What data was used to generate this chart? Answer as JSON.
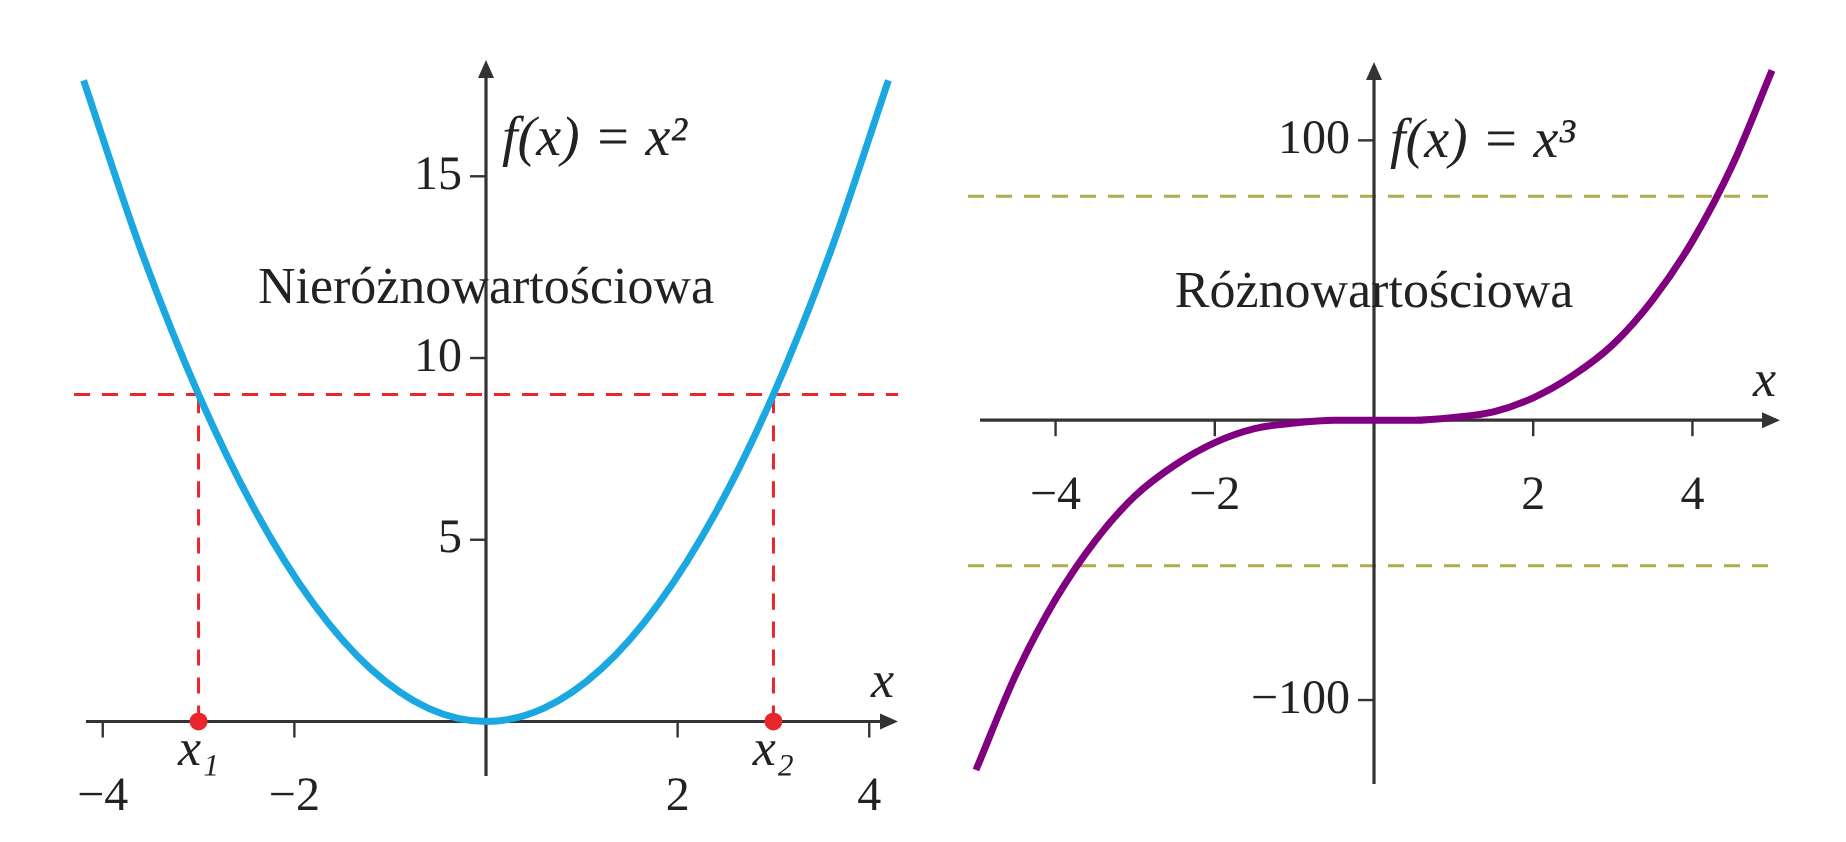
{
  "chart_data": [
    {
      "type": "line",
      "xlabel": "x",
      "xlim": [
        -4.3,
        4.3
      ],
      "ylim": [
        -1.5,
        18.2
      ],
      "xticks": [
        -4,
        -2,
        2,
        4
      ],
      "yticks": [
        5,
        10,
        15
      ],
      "series": [
        {
          "name": "f(x) = x²",
          "color": "#1ba8e0",
          "marker": "none",
          "x": [
            -4.2,
            -3.6,
            -3,
            -2.4,
            -1.8,
            -1.2,
            -0.6,
            0,
            0.6,
            1.2,
            1.8,
            2.4,
            3,
            3.6,
            4.2
          ],
          "values": [
            17.64,
            12.96,
            9,
            5.76,
            3.24,
            1.44,
            0.36,
            0,
            0.36,
            1.44,
            3.24,
            5.76,
            9,
            12.96,
            17.64
          ]
        },
        {
          "color": "#e8262b",
          "line_style": "dashed",
          "marker": "none",
          "x": [
            -3,
            -3
          ],
          "values": [
            0,
            9
          ]
        },
        {
          "color": "#e8262b",
          "line_style": "dashed",
          "marker": "none",
          "x": [
            3,
            3
          ],
          "values": [
            0,
            9
          ]
        },
        {
          "type": "scatter",
          "color": "#e8262b",
          "marker": "circle",
          "x": [
            -3,
            3
          ],
          "values": [
            0,
            0
          ]
        }
      ],
      "ref_lines": [
        {
          "axis": "y",
          "value": 9,
          "color": "#e8262b",
          "line_style": "dashed"
        }
      ],
      "annotations": [
        "Nieróżnowartościowa",
        {
          "text": "x₁",
          "x": -3,
          "y": 0
        },
        {
          "text": "x₂",
          "x": 3,
          "y": 0
        }
      ]
    },
    {
      "type": "line",
      "xlabel": "x",
      "xlim": [
        -5.1,
        5.1
      ],
      "ylim": [
        -130,
        128
      ],
      "xticks": [
        -4,
        -2,
        2,
        4
      ],
      "yticks": [
        -100,
        100
      ],
      "series": [
        {
          "name": "f(x) = x³",
          "color": "#800080",
          "marker": "none",
          "x": [
            -5,
            -4.5,
            -4,
            -3.5,
            -3,
            -2.5,
            -2,
            -1.5,
            -1,
            -0.5,
            0,
            0.5,
            1,
            1.5,
            2,
            2.5,
            3,
            3.5,
            4,
            4.5,
            5
          ],
          "values": [
            -125,
            -91,
            -64,
            -43,
            -27,
            -16,
            -8,
            -3,
            -1,
            0,
            0,
            0,
            1,
            3,
            8,
            16,
            27,
            43,
            64,
            91,
            125
          ]
        }
      ],
      "ref_lines": [
        {
          "axis": "y",
          "value": 80,
          "color": "#b0ab4c",
          "line_style": "dashed"
        },
        {
          "axis": "y",
          "value": -52,
          "color": "#b0ab4c",
          "line_style": "dashed"
        }
      ],
      "annotations": [
        "Różnowartościowa"
      ]
    }
  ]
}
